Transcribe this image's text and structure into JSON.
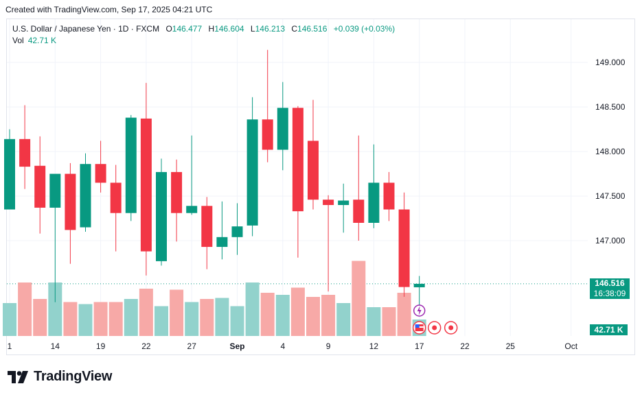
{
  "top_caption": "Created with TradingView.com, Sep 17, 2025 04:21 UTC",
  "header": {
    "symbol": "U.S. Dollar / Japanese Yen · 1D · FXCM",
    "o_label": "O",
    "o_value": "146.477",
    "h_label": "H",
    "h_value": "146.604",
    "l_label": "L",
    "l_value": "146.213",
    "c_label": "C",
    "c_value": "146.516",
    "change": "+0.039 (+0.03%)"
  },
  "vol": {
    "label": "Vol",
    "value": "42.71 K"
  },
  "last_price": {
    "price": "146.516",
    "countdown": "16:38:09"
  },
  "vol_tag": "42.71 K",
  "brand": "TradingView",
  "colors": {
    "up": "#089981",
    "down": "#f23645",
    "vol_up": "#92d2cc",
    "vol_down": "#f7a9a7",
    "grid": "#f0f3fa",
    "axis_text": "#131722"
  },
  "chart_data": {
    "type": "candlestick",
    "symbol": "USDJPY",
    "timeframe": "1D",
    "y_ticks": [
      "149.000",
      "148.500",
      "148.000",
      "147.500",
      "147.000"
    ],
    "ylim": [
      145.92,
      149.14
    ],
    "x_ticks": [
      "1",
      "14",
      "19",
      "22",
      "27",
      "Sep",
      "4",
      "9",
      "12",
      "17",
      "22",
      "25",
      "Oct"
    ],
    "candles": [
      {
        "o": 147.35,
        "h": 148.25,
        "l": 147.35,
        "c": 148.14,
        "vol": 0.32
      },
      {
        "o": 148.14,
        "h": 148.52,
        "l": 147.58,
        "c": 147.83,
        "vol": 0.52
      },
      {
        "o": 147.84,
        "h": 148.17,
        "l": 147.08,
        "c": 147.37,
        "vol": 0.36
      },
      {
        "o": 147.37,
        "h": 147.75,
        "l": 146.31,
        "c": 147.75,
        "vol": 0.52
      },
      {
        "o": 147.75,
        "h": 147.87,
        "l": 146.74,
        "c": 147.12,
        "vol": 0.33
      },
      {
        "o": 147.15,
        "h": 147.98,
        "l": 147.1,
        "c": 147.86,
        "vol": 0.31
      },
      {
        "o": 147.86,
        "h": 148.12,
        "l": 147.54,
        "c": 147.65,
        "vol": 0.33
      },
      {
        "o": 147.65,
        "h": 147.85,
        "l": 146.88,
        "c": 147.31,
        "vol": 0.33
      },
      {
        "o": 147.31,
        "h": 148.41,
        "l": 147.22,
        "c": 148.38,
        "vol": 0.36
      },
      {
        "o": 148.37,
        "h": 148.77,
        "l": 146.61,
        "c": 146.88,
        "vol": 0.46
      },
      {
        "o": 146.77,
        "h": 147.92,
        "l": 146.72,
        "c": 147.77,
        "vol": 0.29
      },
      {
        "o": 147.77,
        "h": 147.91,
        "l": 146.99,
        "c": 147.31,
        "vol": 0.45
      },
      {
        "o": 147.31,
        "h": 148.18,
        "l": 147.29,
        "c": 147.39,
        "vol": 0.33
      },
      {
        "o": 147.39,
        "h": 147.49,
        "l": 146.68,
        "c": 146.93,
        "vol": 0.36
      },
      {
        "o": 146.93,
        "h": 147.44,
        "l": 146.79,
        "c": 147.04,
        "vol": 0.37
      },
      {
        "o": 147.04,
        "h": 147.42,
        "l": 146.84,
        "c": 147.16,
        "vol": 0.29
      },
      {
        "o": 147.17,
        "h": 148.61,
        "l": 147.05,
        "c": 148.36,
        "vol": 0.52
      },
      {
        "o": 148.36,
        "h": 149.14,
        "l": 147.88,
        "c": 148.02,
        "vol": 0.42
      },
      {
        "o": 148.02,
        "h": 148.78,
        "l": 147.79,
        "c": 148.49,
        "vol": 0.4
      },
      {
        "o": 148.49,
        "h": 148.51,
        "l": 146.81,
        "c": 147.33,
        "vol": 0.47
      },
      {
        "o": 148.12,
        "h": 148.58,
        "l": 147.35,
        "c": 147.46,
        "vol": 0.38
      },
      {
        "o": 147.46,
        "h": 147.51,
        "l": 146.43,
        "c": 147.4,
        "vol": 0.4
      },
      {
        "o": 147.4,
        "h": 147.64,
        "l": 147.09,
        "c": 147.45,
        "vol": 0.32
      },
      {
        "o": 147.46,
        "h": 148.18,
        "l": 147.0,
        "c": 147.2,
        "vol": 0.73
      },
      {
        "o": 147.2,
        "h": 148.08,
        "l": 147.14,
        "c": 147.65,
        "vol": 0.28
      },
      {
        "o": 147.65,
        "h": 147.77,
        "l": 147.22,
        "c": 147.35,
        "vol": 0.28
      },
      {
        "o": 147.35,
        "h": 147.54,
        "l": 146.37,
        "c": 146.48,
        "vol": 0.42
      },
      {
        "o": 146.477,
        "h": 146.604,
        "l": 146.213,
        "c": 146.516,
        "vol": 0.16
      }
    ],
    "last_price": 146.516,
    "volume_last": "42.71 K"
  }
}
